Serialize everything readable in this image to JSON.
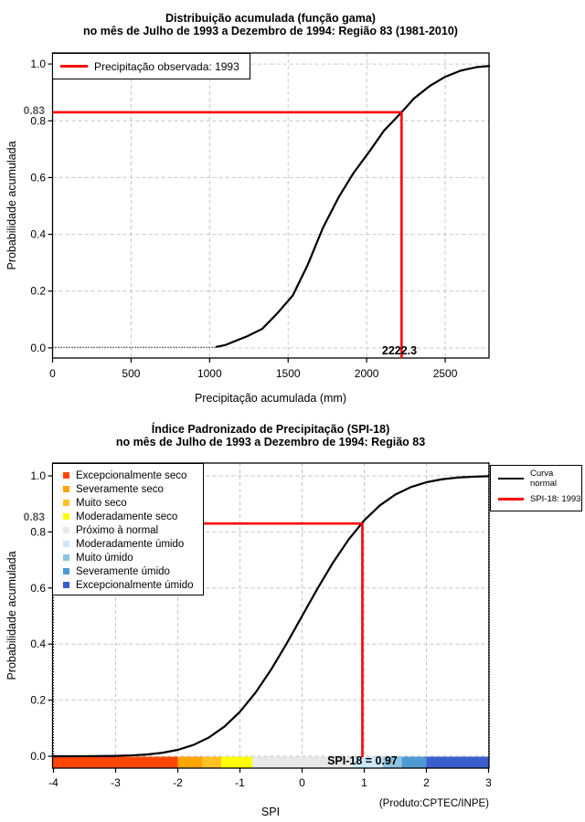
{
  "chart_data": [
    {
      "type": "line",
      "title": "Distribuição acumulada (função gama)",
      "subtitle": "no mês de Julho de 1993 a Dezembro de 1994: Região 83 (1981-2010)",
      "xlabel": "Precipitação acumulada (mm)",
      "ylabel": "Probabilidade acumulada",
      "xlim": [
        0,
        2780
      ],
      "ylim": [
        0,
        1
      ],
      "grid": true,
      "x_ticks": [
        0,
        500,
        1000,
        1500,
        2000,
        2500
      ],
      "x_tick_labels": [
        "0",
        "500",
        "1000",
        "1500",
        "2000",
        "2500"
      ],
      "y_ticks": [
        0,
        0.2,
        0.4,
        0.6,
        0.8,
        1.0
      ],
      "y_tick_labels": [
        "0.0",
        "0.2",
        "0.4",
        "0.6",
        "0.8",
        "1.0"
      ],
      "legend": [
        {
          "label": "Precipitação observada: 1993",
          "color": "#FF0000"
        }
      ],
      "legend_position": "top-left",
      "series": [
        {
          "name": "gamma-cdf",
          "x": [
            1045,
            1100,
            1140,
            1240,
            1335,
            1430,
            1530,
            1625,
            1720,
            1820,
            1915,
            2015,
            2110,
            2222.3,
            2300,
            2400,
            2500,
            2600,
            2700,
            2780
          ],
          "y": [
            0.004,
            0.01,
            0.019,
            0.041,
            0.067,
            0.121,
            0.185,
            0.293,
            0.421,
            0.529,
            0.615,
            0.69,
            0.765,
            0.83,
            0.878,
            0.922,
            0.955,
            0.977,
            0.989,
            0.993
          ]
        }
      ],
      "flat_segment": {
        "x1": 0,
        "x2": 1045,
        "y": 0.002
      },
      "reference": {
        "x": 2222.3,
        "y": 0.83,
        "x_label": "2222.3",
        "y_label": "0.83",
        "color": "#FF0000"
      }
    },
    {
      "type": "line",
      "title": "Índice Padronizado de Precipitação (SPI-18)",
      "subtitle": "no mês de Julho de 1993 a Dezembro de 1994: Região 83",
      "xlabel": "SPI",
      "ylabel": "Probabilidade acumulada",
      "credit": "(Produto:CPTEC/INPE)",
      "xlim": [
        -4,
        3
      ],
      "ylim": [
        0,
        1
      ],
      "grid": true,
      "x_ticks": [
        -4,
        -3,
        -2,
        -1,
        0,
        1,
        2,
        3
      ],
      "x_tick_labels": [
        "-4",
        "-3",
        "-2",
        "-1",
        "0",
        "1",
        "2",
        "3"
      ],
      "y_ticks": [
        0,
        0.2,
        0.4,
        0.6,
        0.8,
        1.0
      ],
      "y_tick_labels": [
        "0.0",
        "0.2",
        "0.4",
        "0.6",
        "0.8",
        "1.0"
      ],
      "legend_right": [
        {
          "label": "Curva normal",
          "color": "#000000"
        },
        {
          "label": "SPI-18: 1993",
          "color": "#FF0000"
        }
      ],
      "categories": [
        {
          "label": "Excepcionalmente seco",
          "color": "#FF4500",
          "range": [
            -4,
            -2
          ]
        },
        {
          "label": "Severamente seco",
          "color": "#FFA500",
          "range": [
            -2,
            -1.6
          ]
        },
        {
          "label": "Muito seco",
          "color": "#FFC125",
          "range": [
            -1.6,
            -1.3
          ]
        },
        {
          "label": "Moderadamente seco",
          "color": "#FFFF00",
          "range": [
            -1.3,
            -0.8
          ]
        },
        {
          "label": "Próximo à normal",
          "color": "#E8E8E8",
          "range": [
            -0.8,
            0.8
          ]
        },
        {
          "label": "Moderadamente úmido",
          "color": "#CBE8F6",
          "range": [
            0.8,
            1.3
          ]
        },
        {
          "label": "Muito úmido",
          "color": "#8FC3E2",
          "range": [
            1.3,
            1.6
          ]
        },
        {
          "label": "Severamente úmido",
          "color": "#4E9BD3",
          "range": [
            1.6,
            2
          ]
        },
        {
          "label": "Excepcionalmente úmido",
          "color": "#3A5FCD",
          "range": [
            2,
            3
          ]
        }
      ],
      "category_bar": {
        "boundaries": [
          -4.015,
          -2,
          -1.6,
          -1.3,
          -0.8,
          0.8,
          1.3,
          1.6,
          2,
          3
        ]
      },
      "series": [
        {
          "name": "normal-cdf",
          "x": [
            -4,
            -3.5,
            -3,
            -2.75,
            -2.5,
            -2.25,
            -2,
            -1.75,
            -1.5,
            -1.25,
            -1,
            -0.75,
            -0.5,
            -0.25,
            0,
            0.25,
            0.5,
            0.75,
            1,
            1.25,
            1.5,
            1.75,
            2,
            2.25,
            2.5,
            2.75,
            3
          ],
          "y": [
            0.0,
            0.0002,
            0.0013,
            0.003,
            0.0062,
            0.0122,
            0.0228,
            0.0401,
            0.0668,
            0.1056,
            0.1587,
            0.2266,
            0.3085,
            0.4013,
            0.5,
            0.5987,
            0.6915,
            0.7734,
            0.8413,
            0.8944,
            0.9332,
            0.9599,
            0.9772,
            0.9878,
            0.9938,
            0.997,
            0.9987
          ]
        }
      ],
      "reference": {
        "x": 0.97,
        "y": 0.83,
        "label": "SPI-18 = 0.97",
        "y_label": "0.83",
        "color": "#FF0000"
      }
    }
  ],
  "colors": {
    "grid": "#C6C6C6",
    "curve": "#000000",
    "reference_line": "#FF0000",
    "prob_annotation": "#595959"
  }
}
